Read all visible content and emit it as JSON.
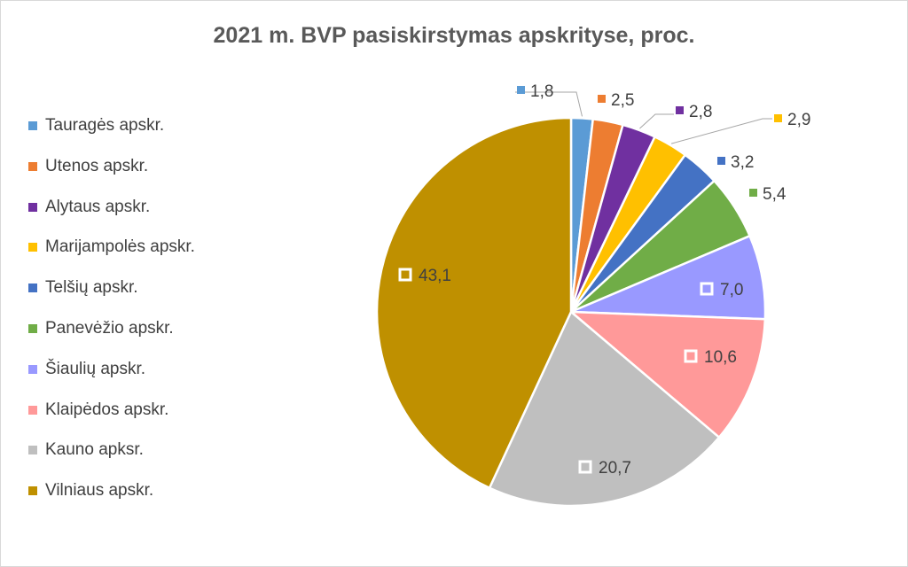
{
  "chart_data": {
    "type": "pie",
    "title": "2021 m. BVP pasiskirstymas apskrityse, proc.",
    "legend_position": "left",
    "categories": [
      "Tauragės apskr.",
      "Utenos apskr.",
      "Alytaus apskr.",
      "Marijampolės apskr.",
      "Telšių apskr.",
      "Panevėžio apskr.",
      "Šiaulių apskr.",
      "Klaipėdos apskr.",
      "Kauno apksr.",
      "Vilniaus apskr."
    ],
    "values": [
      1.8,
      2.5,
      2.8,
      2.9,
      3.2,
      5.4,
      7.0,
      10.6,
      20.7,
      43.1
    ],
    "data_labels": [
      "1,8",
      "2,5",
      "2,8",
      "2,9",
      "3,2",
      "5,4",
      "7,0",
      "10,6",
      "20,7",
      "43,1"
    ],
    "colors": [
      "#5b9bd5",
      "#ed7d31",
      "#7030a0",
      "#ffc000",
      "#4472c4",
      "#70ad47",
      "#9999ff",
      "#ff9999",
      "#bfbfbf",
      "#bf9000"
    ]
  }
}
